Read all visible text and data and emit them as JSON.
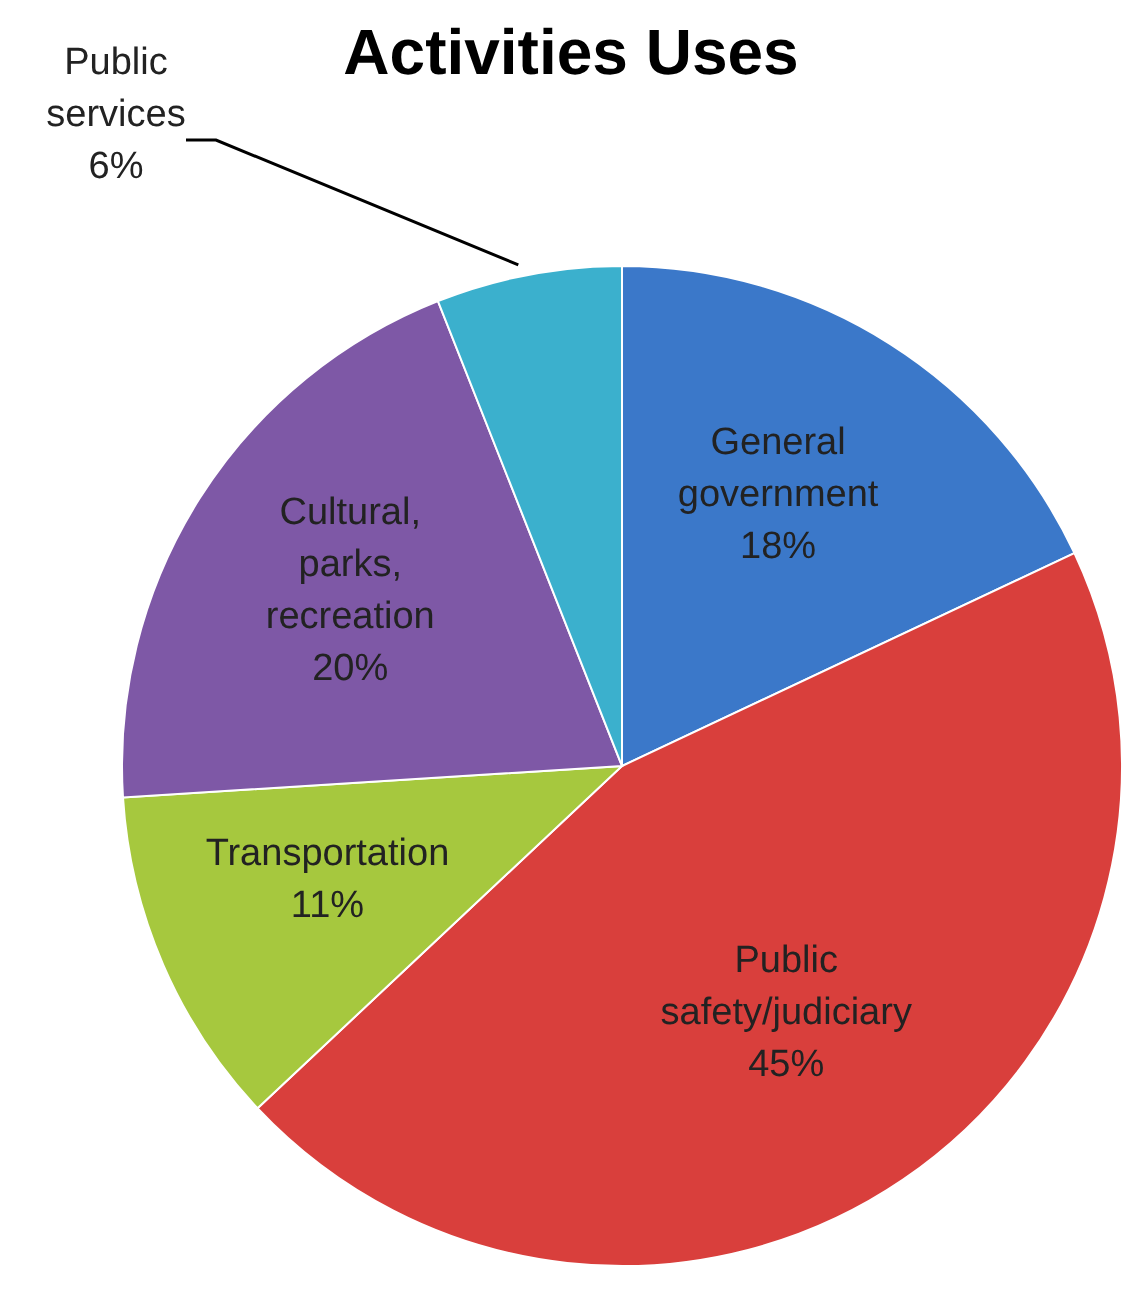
{
  "chart_data": {
    "type": "pie",
    "title": "Activities Uses",
    "categories": [
      "General government",
      "Public safety/judiciary",
      "Transportation",
      "Cultural, parks, recreation",
      "Public services"
    ],
    "values": [
      18,
      45,
      11,
      20,
      6
    ],
    "colors": [
      "#3b78c9",
      "#d93f3c",
      "#a6c83e",
      "#7e58a6",
      "#3bb0cd"
    ],
    "value_labels": [
      "18%",
      "45%",
      "11%",
      "20%",
      "6%"
    ]
  }
}
